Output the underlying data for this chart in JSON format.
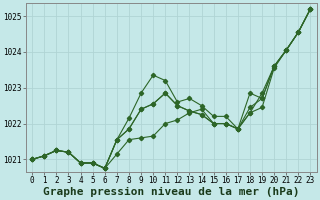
{
  "title": "Graphe pression niveau de la mer (hPa)",
  "background_color": "#c5e8e8",
  "grid_color": "#b0d4d4",
  "line_color": "#2d6628",
  "xlim": [
    -0.5,
    23.5
  ],
  "ylim": [
    1020.65,
    1025.35
  ],
  "yticks": [
    1021,
    1022,
    1023,
    1024,
    1025
  ],
  "xticks": [
    0,
    1,
    2,
    3,
    4,
    5,
    6,
    7,
    8,
    9,
    10,
    11,
    12,
    13,
    14,
    15,
    16,
    17,
    18,
    19,
    20,
    21,
    22,
    23
  ],
  "series": [
    [
      1021.0,
      1021.1,
      1021.25,
      1021.2,
      1020.9,
      1020.9,
      1020.75,
      1021.15,
      1021.55,
      1021.6,
      1021.65,
      1022.0,
      1022.1,
      1022.3,
      1022.4,
      1022.0,
      1022.0,
      1021.85,
      1022.3,
      1022.45,
      1023.55,
      1024.05,
      1024.55,
      1025.2
    ],
    [
      1021.0,
      1021.1,
      1021.25,
      1021.2,
      1020.9,
      1020.9,
      1020.75,
      1021.55,
      1022.15,
      1022.85,
      1023.35,
      1023.2,
      1022.6,
      1022.7,
      1022.5,
      1022.2,
      1022.2,
      1021.85,
      1022.3,
      1022.85,
      1023.6,
      1024.05,
      1024.55,
      1025.2
    ],
    [
      1021.0,
      1021.1,
      1021.25,
      1021.2,
      1020.9,
      1020.9,
      1020.75,
      1021.55,
      1021.85,
      1022.4,
      1022.55,
      1022.85,
      1022.5,
      1022.35,
      1022.25,
      1022.0,
      1022.0,
      1021.85,
      1022.85,
      1022.7,
      1023.6,
      1024.05,
      1024.55,
      1025.2
    ],
    [
      1021.0,
      1021.1,
      1021.25,
      1021.2,
      1020.9,
      1020.9,
      1020.75,
      1021.55,
      1021.85,
      1022.4,
      1022.55,
      1022.85,
      1022.5,
      1022.35,
      1022.25,
      1022.0,
      1022.0,
      1021.85,
      1022.45,
      1022.7,
      1023.6,
      1024.05,
      1024.55,
      1025.2
    ]
  ],
  "xlabel_fontsize": 8,
  "tick_fontsize": 5.5,
  "figsize": [
    3.2,
    2.0
  ],
  "dpi": 100
}
